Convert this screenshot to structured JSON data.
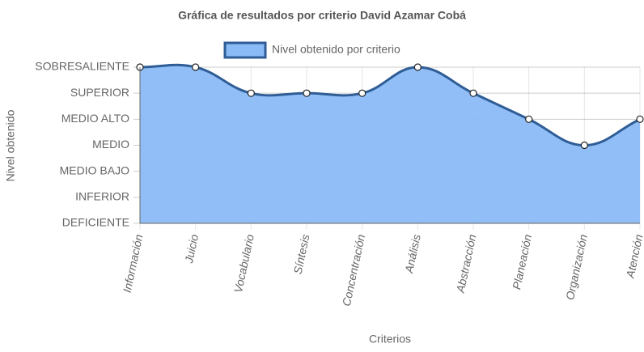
{
  "chart_data": {
    "type": "area",
    "title": "Gráfica de resultados por criterio David Azamar Cobá",
    "x_label": "Criterios",
    "y_label": "Nivel obtenido",
    "categories": [
      "Información",
      "Juicio",
      "Vocabulario",
      "Síntesis",
      "Concentración",
      "Análisis",
      "Abstracción",
      "Planeación",
      "Organización",
      "Atención"
    ],
    "series": [
      {
        "name": "Nivel obtenido por criterio",
        "color": "#2f5d96",
        "fill": "#8bbbf6",
        "values": [
          6,
          6,
          5,
          5,
          5,
          6,
          5,
          4,
          3,
          4
        ]
      }
    ],
    "ylim": [
      0,
      6
    ],
    "yticks": [
      {
        "value": 0,
        "label": "DEFICIENTE"
      },
      {
        "value": 1,
        "label": "INFERIOR"
      },
      {
        "value": 2,
        "label": "MEDIO BAJO"
      },
      {
        "value": 3,
        "label": "MEDIO"
      },
      {
        "value": 4,
        "label": "MEDIO ALTO"
      },
      {
        "value": 5,
        "label": "SUPERIOR"
      },
      {
        "value": 6,
        "label": "SOBRESALIENTE"
      }
    ],
    "grid": true,
    "legend": "top"
  }
}
